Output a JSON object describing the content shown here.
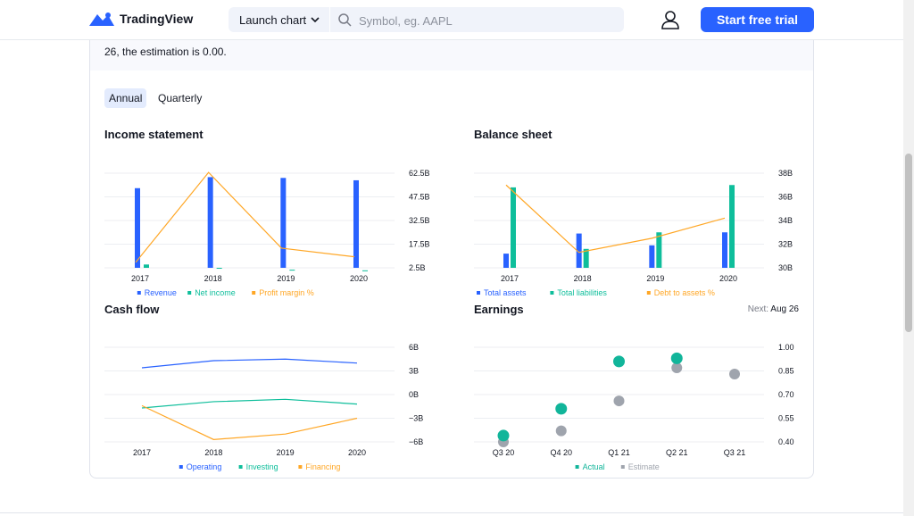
{
  "header": {
    "logo_text": "TradingView",
    "launch_label": "Launch chart",
    "search_placeholder": "Symbol, eg. AAPL",
    "trial_label": "Start free trial"
  },
  "note": {
    "text": "26, the estimation is 0.00."
  },
  "tabs": [
    {
      "label": "Annual",
      "active": true
    },
    {
      "label": "Quarterly",
      "active": false
    }
  ],
  "colors": {
    "blue": "#2962ff",
    "teal": "#0ebe9b",
    "orange": "#ffa726",
    "gray": "#9fa4ad",
    "dot_teal": "#11b59a"
  },
  "chart_data": [
    {
      "title": "Income statement",
      "type": "bar",
      "categories": [
        "2017",
        "2018",
        "2019",
        "2020"
      ],
      "series": [
        {
          "name": "Revenue",
          "values": [
            53.0,
            60.0,
            59.5,
            58.0
          ]
        },
        {
          "name": "Net income",
          "values": [
            4.6,
            2.5,
            1.3,
            0.9
          ]
        },
        {
          "name": "Profit margin %",
          "values": [
            6.0,
            63.0,
            15.0,
            9.5
          ]
        }
      ],
      "y_ticks": [
        "62.5B",
        "47.5B",
        "32.5B",
        "17.5B",
        "2.5B"
      ],
      "ylim": [
        2.5,
        62.5
      ],
      "legend": [
        "Revenue",
        "Net income",
        "Profit margin %"
      ]
    },
    {
      "title": "Balance sheet",
      "type": "bar",
      "categories": [
        "2017",
        "2018",
        "2019",
        "2020"
      ],
      "series": [
        {
          "name": "Total assets",
          "values": [
            31.2,
            32.9,
            31.9,
            33.0
          ]
        },
        {
          "name": "Total liabilities",
          "values": [
            36.8,
            31.6,
            33.0,
            37.0
          ]
        },
        {
          "name": "Debt to assets %",
          "values": [
            37.0,
            31.3,
            32.5,
            34.2
          ]
        }
      ],
      "y_ticks": [
        "38B",
        "36B",
        "34B",
        "32B",
        "30B"
      ],
      "ylim": [
        30,
        38
      ],
      "legend": [
        "Total assets",
        "Total liabilities",
        "Debt to assets %"
      ]
    },
    {
      "title": "Cash flow",
      "type": "line",
      "categories": [
        "2017",
        "2018",
        "2019",
        "2020"
      ],
      "series": [
        {
          "name": "Operating",
          "values": [
            3.4,
            4.3,
            4.5,
            4.0
          ]
        },
        {
          "name": "Investing",
          "values": [
            -1.7,
            -0.9,
            -0.6,
            -1.2
          ]
        },
        {
          "name": "Financing",
          "values": [
            -1.4,
            -5.7,
            -5.0,
            -3.0
          ]
        }
      ],
      "y_ticks": [
        "6B",
        "3B",
        "0B",
        "−3B",
        "−6B"
      ],
      "ylim": [
        -6,
        6
      ],
      "legend": [
        "Operating",
        "Investing",
        "Financing"
      ]
    },
    {
      "title": "Earnings",
      "type": "scatter",
      "categories": [
        "Q3 20",
        "Q4 20",
        "Q1 21",
        "Q2 21",
        "Q3 21"
      ],
      "series": [
        {
          "name": "Actual",
          "values": [
            0.44,
            0.61,
            0.91,
            0.93,
            null
          ]
        },
        {
          "name": "Estimate",
          "values": [
            0.4,
            0.47,
            0.66,
            0.87,
            0.83
          ]
        }
      ],
      "y_ticks": [
        "1.00",
        "0.85",
        "0.70",
        "0.55",
        "0.40"
      ],
      "ylim": [
        0.4,
        1.0
      ],
      "legend": [
        "Actual",
        "Estimate"
      ],
      "next_label": "Next:",
      "next_value": "Aug 26"
    }
  ]
}
